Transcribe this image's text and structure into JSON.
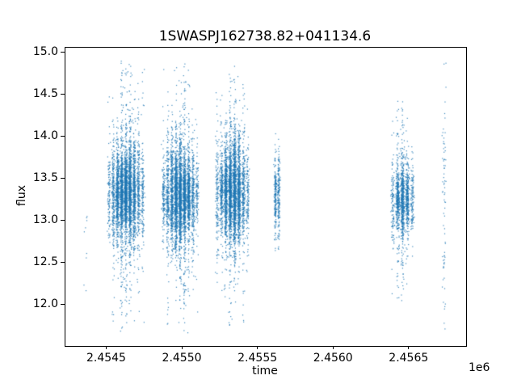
{
  "chart_data": {
    "type": "scatter",
    "title": "1SWASPJ162738.82+041134.6",
    "xlabel": "time",
    "ylabel": "flux",
    "x_offset_factor": "1e6",
    "xlim": [
      2.454225,
      2.456875
    ],
    "ylim": [
      11.51,
      15.06
    ],
    "xticks": [
      2.4545,
      2.455,
      2.4555,
      2.456,
      2.4565
    ],
    "xtick_labels": [
      "2.4545",
      "2.4550",
      "2.4555",
      "2.4560",
      "2.4565"
    ],
    "yticks": [
      12.0,
      12.5,
      13.0,
      13.5,
      14.0,
      14.5,
      15.0
    ],
    "ytick_labels": [
      "12.0",
      "12.5",
      "13.0",
      "13.5",
      "14.0",
      "14.5",
      "15.0"
    ],
    "grid": false,
    "legend": false,
    "marker_color": "#1f77b4",
    "marker_size_px": 1,
    "axis_color": "#000000",
    "background": "#ffffff",
    "description": "SuperWASP light curve: flux vs time (Julian date / 1e6). Dense vertical bands of nightly photometry points around flux ~13.3 with wispy tails from ~11.7 to ~14.9.",
    "clusters": [
      {
        "n": 9,
        "x_center": 2.45436,
        "x_halfwidth": 1.5e-05,
        "columns": 1,
        "y_mean": 12.75,
        "y_core_sigma": 0.3,
        "y_halo_sigma": 0.45,
        "halo_frac": 0.5,
        "uniform_frac": 0.3,
        "y_min": 12.15,
        "y_max": 13.3
      },
      {
        "n": 4200,
        "x_center": 2.454625,
        "x_halfwidth": 0.000125,
        "columns": 9,
        "y_mean": 13.33,
        "y_core_sigma": 0.24,
        "y_halo_sigma": 0.62,
        "halo_frac": 0.22,
        "uniform_frac": 0.01,
        "y_min": 11.68,
        "y_max": 14.9
      },
      {
        "n": 4200,
        "x_center": 2.454985,
        "x_halfwidth": 0.000125,
        "columns": 9,
        "y_mean": 13.3,
        "y_core_sigma": 0.25,
        "y_halo_sigma": 0.6,
        "halo_frac": 0.22,
        "uniform_frac": 0.01,
        "y_min": 11.66,
        "y_max": 14.88
      },
      {
        "n": 3800,
        "x_center": 2.45533,
        "x_halfwidth": 0.000115,
        "columns": 8,
        "y_mean": 13.35,
        "y_core_sigma": 0.26,
        "y_halo_sigma": 0.6,
        "halo_frac": 0.24,
        "uniform_frac": 0.01,
        "y_min": 11.7,
        "y_max": 14.85
      },
      {
        "n": 380,
        "x_center": 2.455625,
        "x_halfwidth": 2.2e-05,
        "columns": 2,
        "y_mean": 13.3,
        "y_core_sigma": 0.28,
        "y_halo_sigma": 0.5,
        "halo_frac": 0.3,
        "uniform_frac": 0.0,
        "y_min": 12.63,
        "y_max": 14.12
      },
      {
        "n": 1500,
        "x_center": 2.456455,
        "x_halfwidth": 8e-05,
        "columns": 5,
        "y_mean": 13.25,
        "y_core_sigma": 0.22,
        "y_halo_sigma": 0.5,
        "halo_frac": 0.25,
        "uniform_frac": 0.01,
        "y_min": 12.05,
        "y_max": 14.5
      },
      {
        "n": 75,
        "x_center": 2.45673,
        "x_halfwidth": 1.8e-05,
        "columns": 1,
        "y_mean": 13.3,
        "y_core_sigma": 0.5,
        "y_halo_sigma": 0.9,
        "halo_frac": 0.45,
        "uniform_frac": 0.35,
        "y_min": 11.7,
        "y_max": 14.9
      }
    ]
  }
}
